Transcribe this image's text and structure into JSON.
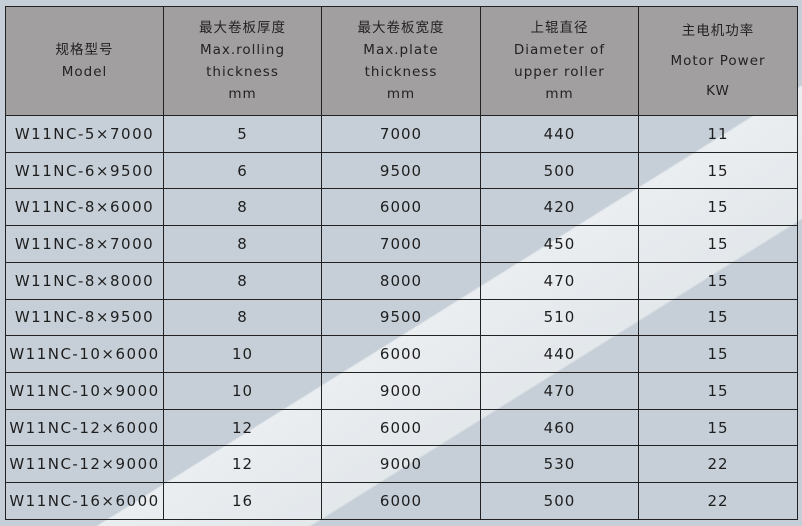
{
  "headers": [
    {
      "cn": "规格型号",
      "en": [
        "Model"
      ]
    },
    {
      "cn": "最大卷板厚度",
      "en": [
        "Max.rolling",
        "thickness",
        "mm"
      ]
    },
    {
      "cn": "最大卷板宽度",
      "en": [
        "Max.plate",
        "thickness",
        "mm"
      ]
    },
    {
      "cn": "上辊直径",
      "en": [
        "Diameter of",
        "upper roller",
        "mm"
      ]
    },
    {
      "cn": "主电机功率",
      "en": [
        "Motor Power",
        "KW"
      ]
    }
  ],
  "rows": [
    [
      "W11NC-5×7000",
      "5",
      "7000",
      "440",
      "11"
    ],
    [
      "W11NC-6×9500",
      "6",
      "9500",
      "500",
      "15"
    ],
    [
      "W11NC-8×6000",
      "8",
      "6000",
      "420",
      "15"
    ],
    [
      "W11NC-8×7000",
      "8",
      "7000",
      "450",
      "15"
    ],
    [
      "W11NC-8×8000",
      "8",
      "8000",
      "470",
      "15"
    ],
    [
      "W11NC-8×9500",
      "8",
      "9500",
      "510",
      "15"
    ],
    [
      "W11NC-10×6000",
      "10",
      "6000",
      "440",
      "15"
    ],
    [
      "W11NC-10×9000",
      "10",
      "9000",
      "470",
      "15"
    ],
    [
      "W11NC-12×6000",
      "12",
      "6000",
      "460",
      "15"
    ],
    [
      "W11NC-12×9000",
      "12",
      "9000",
      "530",
      "22"
    ],
    [
      "W11NC-16×6000",
      "16",
      "6000",
      "500",
      "22"
    ]
  ]
}
